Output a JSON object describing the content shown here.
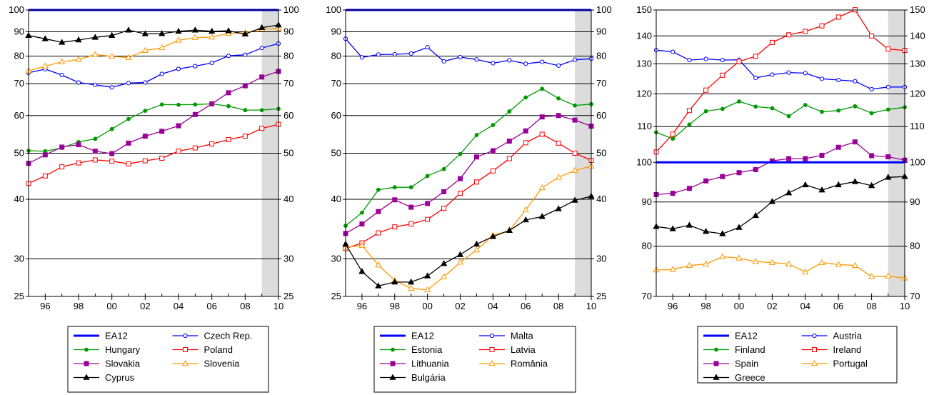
{
  "chart_data": [
    {
      "type": "line",
      "title": "",
      "xlabel": "",
      "ylabel": "",
      "y_scale": "log",
      "ylim": [
        25,
        100
      ],
      "xlim": [
        1995,
        2010
      ],
      "y_ticks": [
        25,
        30,
        40,
        50,
        60,
        70,
        80,
        90,
        100
      ],
      "y_tick_labels": [
        "25",
        "30",
        "40",
        "50",
        "60",
        "70",
        "80",
        "90",
        "100"
      ],
      "x_ticks": [
        1996,
        1998,
        2000,
        2002,
        2004,
        2006,
        2008,
        2010
      ],
      "x_tick_labels": [
        "96",
        "98",
        "00",
        "02",
        "04",
        "06",
        "08",
        "10"
      ],
      "shaded_period": [
        2009,
        2010
      ],
      "grid": true,
      "legend_position": "bottom",
      "years": [
        1995,
        1996,
        1997,
        1998,
        1999,
        2000,
        2001,
        2002,
        2003,
        2004,
        2005,
        2006,
        2007,
        2008,
        2009,
        2010
      ],
      "series": [
        {
          "name": "EA12",
          "color": "#0000ff",
          "marker": "none",
          "values": [
            100,
            100,
            100,
            100,
            100,
            100,
            100,
            100,
            100,
            100,
            100,
            100,
            100,
            100,
            100,
            100
          ]
        },
        {
          "name": "Czech Rep.",
          "color": "#0000ff",
          "marker": "circle",
          "values": [
            73.8,
            75.1,
            73.0,
            70.4,
            69.6,
            68.8,
            70.2,
            70.4,
            73.4,
            75.2,
            76.2,
            77.4,
            80.1,
            80.5,
            83.2,
            85.0
          ]
        },
        {
          "name": "Hungary",
          "color": "#009900",
          "marker": "dot",
          "values": [
            50.6,
            50.5,
            51.3,
            52.8,
            53.6,
            56.2,
            59.0,
            61.4,
            63.3,
            63.2,
            63.3,
            63.5,
            62.8,
            61.6,
            61.6,
            62.0
          ]
        },
        {
          "name": "Poland",
          "color": "#ff0000",
          "marker": "square",
          "values": [
            43.2,
            44.8,
            46.8,
            47.7,
            48.4,
            48.1,
            47.5,
            48.2,
            48.8,
            50.5,
            51.3,
            52.3,
            53.4,
            54.3,
            56.4,
            57.5
          ]
        },
        {
          "name": "Slovakia",
          "color": "#990099",
          "marker": "filled-square",
          "values": [
            47.6,
            49.6,
            51.5,
            52.1,
            50.5,
            49.9,
            52.5,
            54.3,
            55.6,
            57.1,
            60.3,
            63.5,
            67.0,
            69.3,
            72.3,
            74.3
          ]
        },
        {
          "name": "Slovenia",
          "color": "#ff9900",
          "marker": "triangle",
          "values": [
            74.5,
            76.2,
            77.8,
            78.7,
            80.6,
            79.9,
            79.4,
            82.2,
            83.3,
            86.4,
            87.5,
            87.7,
            89.3,
            89.5,
            91.2,
            91.5
          ]
        },
        {
          "name": "Cyprus",
          "color": "#000000",
          "marker": "filled-triangle",
          "values": [
            88.4,
            87.0,
            85.5,
            86.5,
            87.6,
            88.4,
            90.7,
            89.1,
            89.2,
            90.2,
            90.7,
            90.2,
            90.4,
            89.0,
            91.8,
            93.0
          ]
        }
      ]
    },
    {
      "type": "line",
      "title": "",
      "xlabel": "",
      "ylabel": "",
      "y_scale": "log",
      "ylim": [
        25,
        100
      ],
      "xlim": [
        1995,
        2010
      ],
      "y_ticks": [
        25,
        30,
        40,
        50,
        60,
        70,
        80,
        90,
        100
      ],
      "y_tick_labels": [
        "25",
        "30",
        "40",
        "50",
        "60",
        "70",
        "80",
        "90",
        "100"
      ],
      "x_ticks": [
        1996,
        1998,
        2000,
        2002,
        2004,
        2006,
        2008,
        2010
      ],
      "x_tick_labels": [
        "96",
        "98",
        "00",
        "02",
        "04",
        "06",
        "08",
        "10"
      ],
      "shaded_period": [
        2009,
        2010
      ],
      "grid": true,
      "legend_position": "bottom",
      "years": [
        1995,
        1996,
        1997,
        1998,
        1999,
        2000,
        2001,
        2002,
        2003,
        2004,
        2005,
        2006,
        2007,
        2008,
        2009,
        2010
      ],
      "series": [
        {
          "name": "EA12",
          "color": "#0000ff",
          "marker": "none",
          "values": [
            100,
            100,
            100,
            100,
            100,
            100,
            100,
            100,
            100,
            100,
            100,
            100,
            100,
            100,
            100,
            100
          ]
        },
        {
          "name": "Malta",
          "color": "#0000ff",
          "marker": "circle",
          "values": [
            87.0,
            79.5,
            80.6,
            80.7,
            81.0,
            83.5,
            78.0,
            79.6,
            78.7,
            77.3,
            78.4,
            77.1,
            77.8,
            76.4,
            78.6,
            79.0
          ]
        },
        {
          "name": "Estonia",
          "color": "#009900",
          "marker": "dot",
          "values": [
            35.2,
            37.5,
            41.9,
            42.4,
            42.4,
            44.8,
            46.3,
            49.8,
            54.6,
            57.3,
            61.2,
            65.5,
            68.3,
            65.2,
            63.0,
            63.4
          ]
        },
        {
          "name": "Latvia",
          "color": "#ff0000",
          "marker": "square",
          "values": [
            31.5,
            32.4,
            34.0,
            35.0,
            35.5,
            36.3,
            38.3,
            41.2,
            43.5,
            45.9,
            48.7,
            52.6,
            54.8,
            52.5,
            50.0,
            48.3
          ]
        },
        {
          "name": "Lithuania",
          "color": "#990099",
          "marker": "filled-square",
          "values": [
            33.9,
            35.5,
            37.7,
            39.9,
            38.5,
            39.2,
            41.5,
            44.2,
            49.1,
            50.6,
            53.0,
            55.7,
            59.6,
            60.0,
            58.7,
            57.0
          ]
        },
        {
          "name": "Romania",
          "label": "România",
          "color": "#ff9900",
          "marker": "triangle",
          "values": [
            31.7,
            32.0,
            29.1,
            27.0,
            26.0,
            25.8,
            27.5,
            29.5,
            31.3,
            33.6,
            34.4,
            38.0,
            42.3,
            44.5,
            46.0,
            47.0
          ]
        },
        {
          "name": "Bulgaria",
          "label": "Bulgária",
          "color": "#000000",
          "marker": "filled-triangle",
          "values": [
            32.2,
            28.2,
            26.3,
            26.8,
            26.8,
            27.6,
            29.3,
            30.6,
            32.2,
            33.4,
            34.4,
            36.2,
            36.8,
            38.2,
            39.8,
            40.6
          ]
        }
      ]
    },
    {
      "type": "line",
      "title": "",
      "xlabel": "",
      "ylabel": "",
      "y_scale": "log",
      "ylim": [
        70,
        150
      ],
      "xlim": [
        1995,
        2010
      ],
      "y_ticks": [
        70,
        80,
        90,
        100,
        110,
        120,
        130,
        140,
        150
      ],
      "y_tick_labels": [
        "70",
        "80",
        "90",
        "100",
        "110",
        "120",
        "130",
        "140",
        "150"
      ],
      "x_ticks": [
        1996,
        1998,
        2000,
        2002,
        2004,
        2006,
        2008,
        2010
      ],
      "x_tick_labels": [
        "96",
        "98",
        "00",
        "02",
        "04",
        "06",
        "08",
        "10"
      ],
      "shaded_period": [
        2009,
        2010
      ],
      "grid": true,
      "legend_position": "bottom",
      "years": [
        1995,
        1996,
        1997,
        1998,
        1999,
        2000,
        2001,
        2002,
        2003,
        2004,
        2005,
        2006,
        2007,
        2008,
        2009,
        2010
      ],
      "series": [
        {
          "name": "EA12",
          "color": "#0000ff",
          "marker": "none",
          "values": [
            100,
            100,
            100,
            100,
            100,
            100,
            100,
            100,
            100,
            100,
            100,
            100,
            100,
            100,
            100,
            100
          ]
        },
        {
          "name": "Austria",
          "color": "#0000ff",
          "marker": "circle",
          "values": [
            134.8,
            134.2,
            131.3,
            131.7,
            131.3,
            131.4,
            125.2,
            126.3,
            127.0,
            126.8,
            124.9,
            124.5,
            124.1,
            121.5,
            122.2,
            122.2
          ]
        },
        {
          "name": "Finland",
          "color": "#009900",
          "marker": "dot",
          "values": [
            108.3,
            106.5,
            110.6,
            114.6,
            115.3,
            117.6,
            116.0,
            115.5,
            113.1,
            116.5,
            114.4,
            114.8,
            116.1,
            114.0,
            115.1,
            115.8
          ]
        },
        {
          "name": "Ireland",
          "color": "#ff0000",
          "marker": "square",
          "values": [
            102.8,
            107.8,
            114.8,
            121.2,
            126.1,
            130.8,
            132.6,
            137.6,
            140.4,
            141.7,
            143.8,
            147.2,
            150.1,
            140.0,
            135.2,
            134.7
          ]
        },
        {
          "name": "Spain",
          "color": "#990099",
          "marker": "filled-square",
          "values": [
            91.8,
            92.1,
            93.3,
            95.2,
            96.3,
            97.3,
            98.1,
            100.4,
            101.0,
            101.0,
            101.9,
            104.1,
            105.6,
            101.8,
            101.5,
            100.6
          ]
        },
        {
          "name": "Portugal",
          "color": "#ff9900",
          "marker": "triangle",
          "values": [
            75.1,
            75.2,
            76.0,
            76.3,
            77.8,
            77.5,
            76.8,
            76.6,
            76.3,
            74.7,
            76.6,
            76.2,
            76.0,
            73.8,
            73.9,
            73.5
          ]
        },
        {
          "name": "Greece",
          "color": "#000000",
          "marker": "filled-triangle",
          "values": [
            84.3,
            83.8,
            84.6,
            83.2,
            82.7,
            84.1,
            86.8,
            90.1,
            92.2,
            94.2,
            92.9,
            94.2,
            95.0,
            94.0,
            96.1,
            96.3
          ]
        }
      ]
    }
  ]
}
